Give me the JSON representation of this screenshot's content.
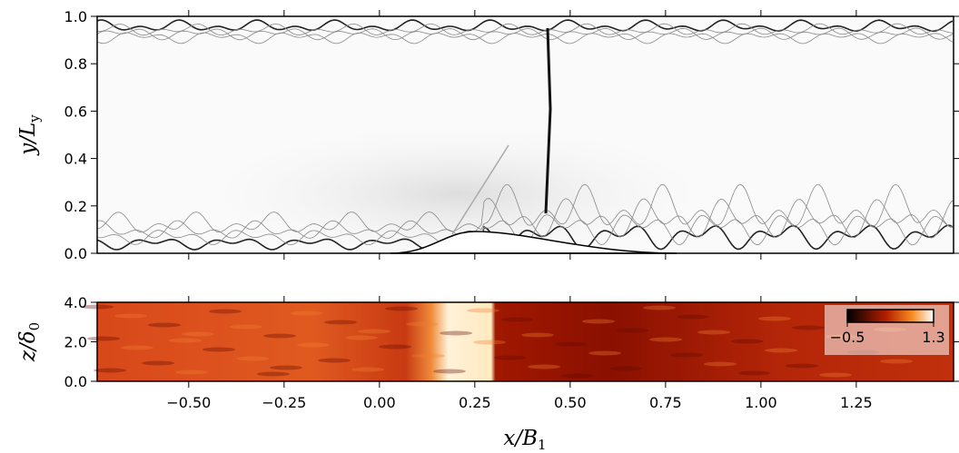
{
  "chart_data": [
    {
      "type": "image",
      "ylabel": [
        "y/L",
        "y"
      ],
      "xlim": [
        -0.74,
        1.505
      ],
      "ylim": [
        0,
        1
      ],
      "xticks": [
        -0.5,
        -0.25,
        0,
        0.25,
        0.5,
        0.75,
        1,
        1.25
      ],
      "yticks": [
        {
          "value": 0,
          "label": "0.0"
        },
        0.2,
        0.4,
        0.6,
        0.8,
        {
          "value": 1,
          "label": "1.0"
        }
      ]
    },
    {
      "type": "heatmap",
      "ylabel": [
        "z/δ",
        "0"
      ],
      "xlabel": [
        "x/B",
        "1"
      ],
      "xlim": [
        -0.74,
        1.505
      ],
      "ylim": [
        0,
        4
      ],
      "xticks": [
        {
          "value": -0.5,
          "label": "−0.50"
        },
        {
          "value": -0.25,
          "label": "−0.25"
        },
        {
          "value": 0,
          "label": "0.00"
        },
        0.25,
        {
          "value": 0.5,
          "label": "0.50"
        },
        0.75,
        {
          "value": 1,
          "label": "1.00"
        },
        1.25
      ],
      "yticks": [
        {
          "value": 0,
          "label": "0.0"
        },
        {
          "value": 2,
          "label": "2.0"
        },
        {
          "value": 4,
          "label": "4.0"
        }
      ],
      "colorbar": {
        "lim": [
          -0.5,
          1.3
        ],
        "ticks": [
          {
            "value": -0.5,
            "label": "−0.5"
          },
          1.3
        ]
      }
    }
  ]
}
